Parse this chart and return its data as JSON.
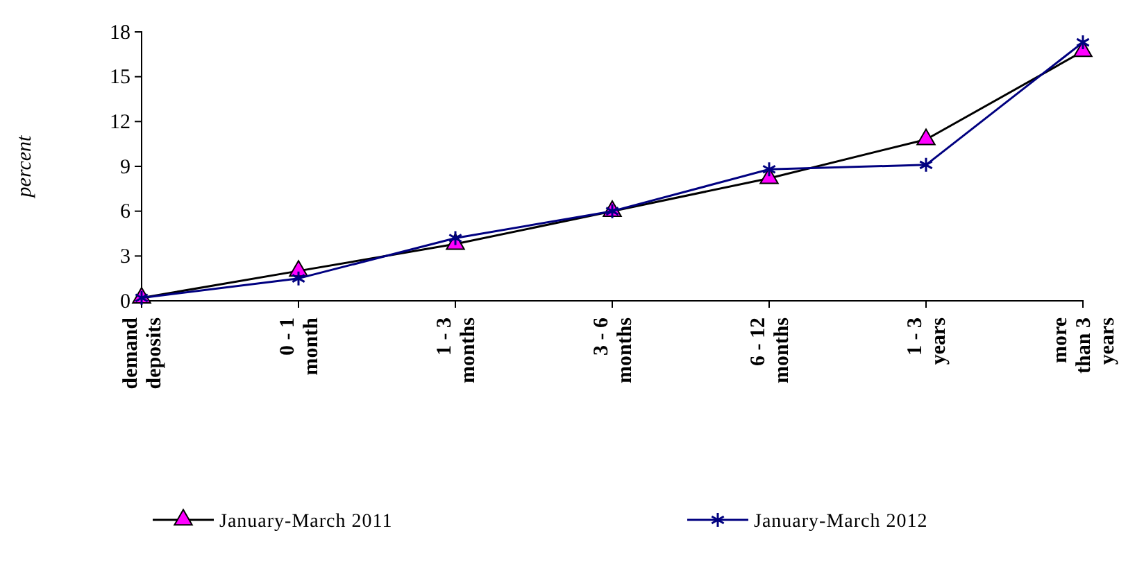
{
  "chart_data": {
    "type": "line",
    "ylabel": "percent",
    "categories": [
      "demand deposits",
      "0 - 1 month",
      "1 - 3 months",
      "3 - 6 months",
      "6 - 12 months",
      "1 - 3 years",
      "more than 3 years"
    ],
    "series": [
      {
        "name": "January-March 2011",
        "color": "#ff00ff",
        "marker": "triangle",
        "values": [
          0.2,
          2.0,
          3.8,
          6.0,
          8.2,
          10.8,
          16.7
        ]
      },
      {
        "name": "January-March 2012",
        "color": "#000080",
        "marker": "cross",
        "values": [
          0.2,
          1.5,
          4.2,
          6.0,
          8.8,
          9.1,
          17.3
        ]
      }
    ],
    "ylim": [
      0,
      18
    ],
    "yticks": [
      0,
      3,
      6,
      9,
      12,
      15,
      18
    ],
    "grid": false,
    "legend": "bottom"
  }
}
